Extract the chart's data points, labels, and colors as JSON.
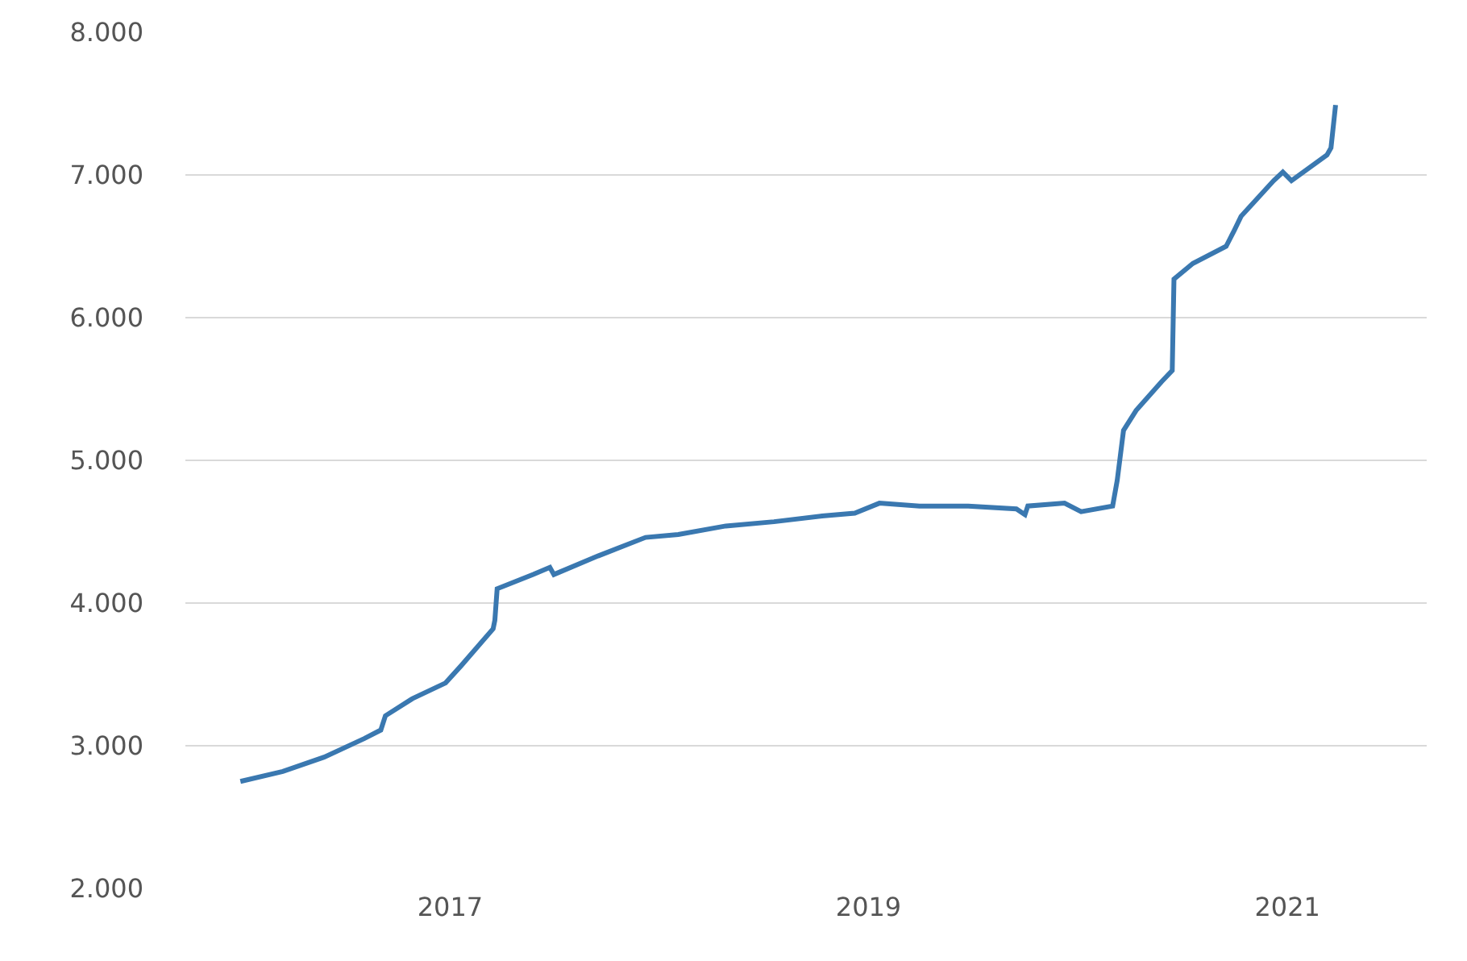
{
  "chart_data": {
    "type": "line",
    "x": [
      "2016-01-01",
      "2016-03-15",
      "2016-05-26",
      "2016-08-04",
      "2016-09-02",
      "2016-09-10",
      "2016-10-27",
      "2016-12-24",
      "2017-01-20",
      "2017-03-17",
      "2017-03-20",
      "2017-03-24",
      "2017-05-26",
      "2017-06-24",
      "2017-07-01",
      "2017-09-16",
      "2017-12-08",
      "2018-02-03",
      "2018-04-27",
      "2018-07-20",
      "2018-10-12",
      "2018-12-08",
      "2019-01-20",
      "2019-03-31",
      "2019-06-24",
      "2019-09-16",
      "2019-10-01",
      "2019-10-06",
      "2019-12-09",
      "2020-01-07",
      "2020-03-02",
      "2020-03-10",
      "2020-03-21",
      "2020-04-12",
      "2020-05-26",
      "2020-06-14",
      "2020-06-17",
      "2020-07-20",
      "2020-09-16",
      "2020-09-30",
      "2020-10-12",
      "2020-12-08",
      "2020-12-24",
      "2021-01-08",
      "2021-03-11",
      "2021-03-18",
      "2021-03-26"
    ],
    "series": [
      {
        "color": "#3a78b0",
        "values": [
          2750,
          2820,
          2920,
          3050,
          3110,
          3210,
          3330,
          3440,
          3560,
          3820,
          3880,
          4100,
          4200,
          4250,
          4200,
          4330,
          4460,
          4480,
          4540,
          4570,
          4610,
          4630,
          4700,
          4680,
          4680,
          4660,
          4620,
          4680,
          4700,
          4640,
          4680,
          4860,
          5210,
          5350,
          5550,
          5630,
          6270,
          6380,
          6500,
          6610,
          6710,
          6960,
          7020,
          6960,
          7140,
          7190,
          7490
        ]
      }
    ],
    "xlim": [
      "2015-09-27",
      "2021-09-01"
    ],
    "xticks": [
      "2017",
      "2019",
      "2021"
    ],
    "ylim": [
      2000,
      8000
    ],
    "yticks": [
      {
        "value": 2000,
        "label": "2.000"
      },
      {
        "value": 3000,
        "label": "3.000"
      },
      {
        "value": 4000,
        "label": "4.000"
      },
      {
        "value": 5000,
        "label": "5.000"
      },
      {
        "value": 6000,
        "label": "6.000"
      },
      {
        "value": 7000,
        "label": "7.000"
      },
      {
        "value": 8000,
        "label": "8.000"
      }
    ],
    "grid": "y",
    "marker": "none",
    "line_style": "solid"
  }
}
